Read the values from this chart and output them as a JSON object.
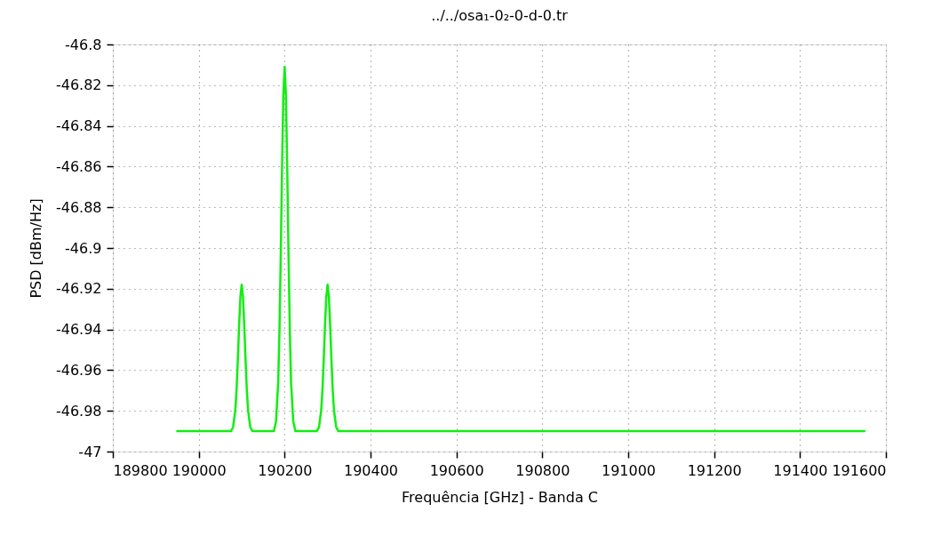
{
  "chart_data": {
    "type": "line",
    "title": "../../osa₁-0₂-0-d-0.tr",
    "xlabel": "Frequência [GHz] - Banda C",
    "ylabel": "PSD [dBm/Hz]",
    "x": [
      189950,
      190075,
      190080,
      190085,
      190088,
      190091,
      190094,
      190097,
      190100,
      190103,
      190106,
      190109,
      190112,
      190115,
      190120,
      190125,
      190175,
      190180,
      190185,
      190188,
      190191,
      190194,
      190197,
      190200,
      190203,
      190206,
      190209,
      190212,
      190215,
      190220,
      190225,
      190275,
      190280,
      190285,
      190288,
      190291,
      190294,
      190297,
      190300,
      190303,
      190306,
      190309,
      190312,
      190315,
      190320,
      190325,
      191550
    ],
    "series": [
      {
        "color": "#11ee11",
        "values": [
          -46.99,
          -46.99,
          -46.988,
          -46.98,
          -46.97,
          -46.955,
          -46.938,
          -46.924,
          -46.918,
          -46.924,
          -46.938,
          -46.955,
          -46.97,
          -46.98,
          -46.988,
          -46.99,
          -46.99,
          -46.985,
          -46.966,
          -46.94,
          -46.903,
          -46.86,
          -46.825,
          -46.811,
          -46.825,
          -46.86,
          -46.903,
          -46.94,
          -46.966,
          -46.985,
          -46.99,
          -46.99,
          -46.988,
          -46.98,
          -46.97,
          -46.955,
          -46.938,
          -46.924,
          -46.918,
          -46.924,
          -46.938,
          -46.955,
          -46.97,
          -46.98,
          -46.988,
          -46.99,
          -46.99
        ]
      }
    ],
    "xlim": [
      189800,
      191600
    ],
    "xticks": [
      189800,
      190000,
      190200,
      190400,
      190600,
      190800,
      191000,
      191200,
      191400,
      191600
    ],
    "ylim": [
      -47,
      -46.8
    ],
    "yticks": [
      -47,
      -46.98,
      -46.96,
      -46.94,
      -46.92,
      -46.9,
      -46.88,
      -46.86,
      -46.84,
      -46.82,
      -46.8
    ],
    "grid": true,
    "line_style": "solid"
  }
}
